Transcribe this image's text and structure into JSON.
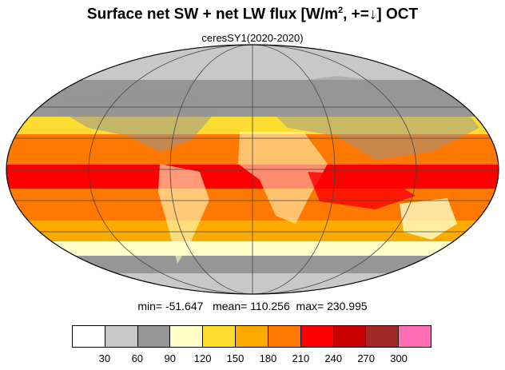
{
  "title": {
    "main_prefix": "Surface net SW + net LW flux [W/m",
    "superscript": "2",
    "main_suffix": ", +=↓]  OCT"
  },
  "subtitle": "ceresSY1(2020-2020)",
  "stats": {
    "min_label": "min=",
    "min_value": "-51.647",
    "mean_label": "mean=",
    "mean_value": "110.256",
    "max_label": "max=",
    "max_value": "230.995"
  },
  "colorbar": {
    "colors": [
      "#ffffff",
      "#c8c8c8",
      "#969696",
      "#ffffc8",
      "#ffdc32",
      "#ffaa00",
      "#ff7800",
      "#ff0000",
      "#c80000",
      "#a02828",
      "#ff6eb4"
    ],
    "ticks": [
      "30",
      "60",
      "90",
      "120",
      "150",
      "180",
      "210",
      "240",
      "270",
      "300"
    ]
  },
  "map": {
    "projection": "mollweide",
    "zones": [
      {
        "latitude_band": "north polar",
        "color": "#c8c8c8"
      },
      {
        "latitude_band": "northern midlatitude",
        "color": "#969696"
      },
      {
        "latitude_band": "northern subtropics",
        "color": "#ffdc32"
      },
      {
        "latitude_band": "tropics",
        "color": "#ff7800"
      },
      {
        "latitude_band": "equatorial belt",
        "color": "#ff0000"
      },
      {
        "latitude_band": "southern subtropics",
        "color": "#ffaa00"
      },
      {
        "latitude_band": "southern midlatitude",
        "color": "#ffffc8"
      },
      {
        "latitude_band": "southern ocean",
        "color": "#969696"
      },
      {
        "latitude_band": "antarctica",
        "color": "#c8c8c8"
      }
    ]
  }
}
